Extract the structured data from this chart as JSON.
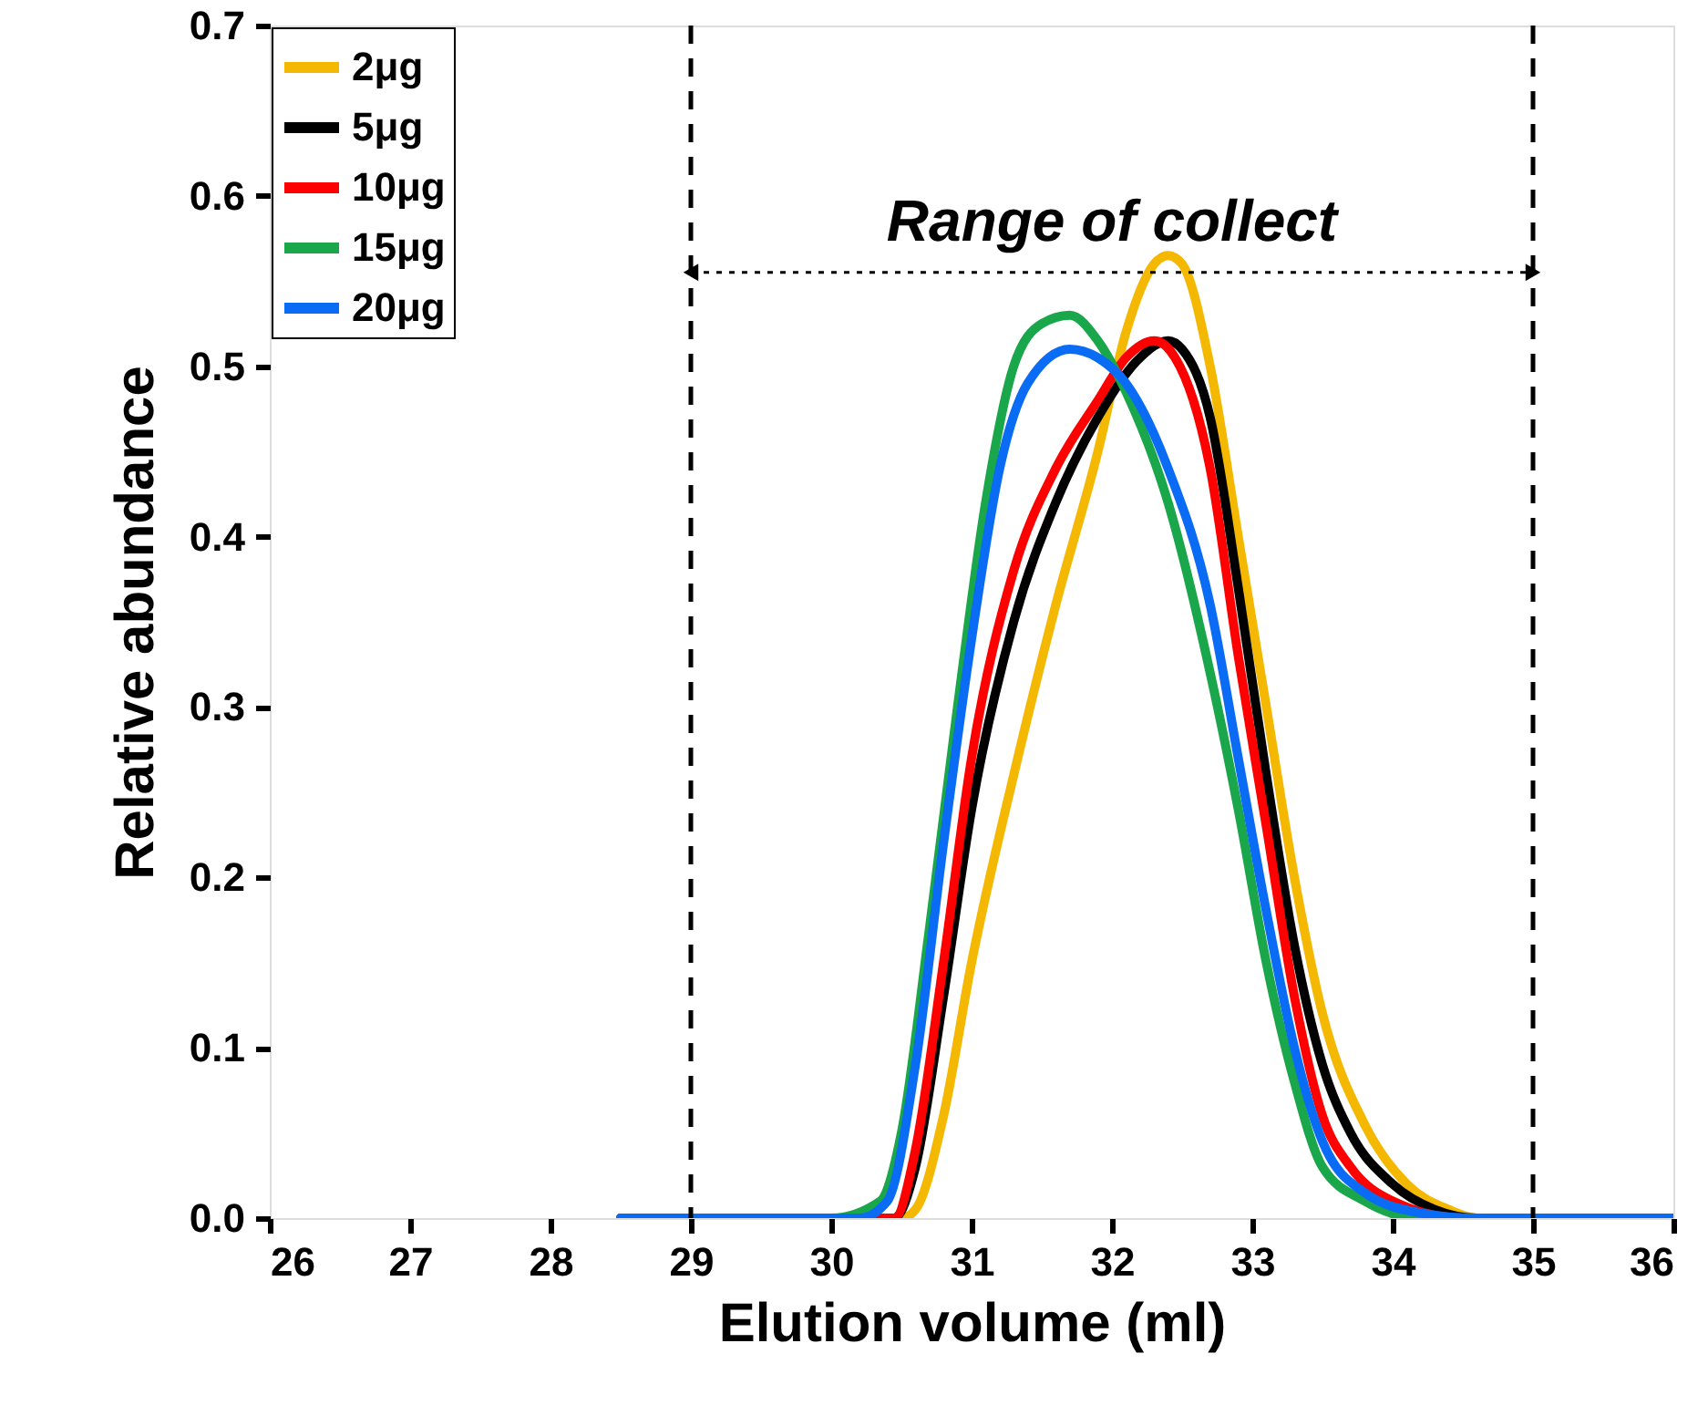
{
  "chart_data": {
    "type": "line",
    "xlabel": "Elution volume (ml)",
    "ylabel": "Relative abundance",
    "xlim": [
      26,
      36
    ],
    "xticks": [
      26,
      27,
      28,
      29,
      30,
      31,
      32,
      33,
      34,
      35,
      36
    ],
    "ylim": [
      0,
      0.7
    ],
    "yticks": [
      {
        "value": 0,
        "label": "0.0"
      },
      0.1,
      0.2,
      0.3,
      0.4,
      0.5,
      0.6,
      0.7
    ],
    "grid": false,
    "legend": "top left",
    "marker": "none",
    "line_style": "solid",
    "ref_lines": [
      {
        "axis": "x",
        "value": 29,
        "line_style": "dashed",
        "color": "#000000"
      },
      {
        "axis": "x",
        "value": 35,
        "line_style": "dashed",
        "color": "#000000"
      }
    ],
    "annotations": [
      "Range of collect"
    ],
    "series": [
      {
        "name": "2μg",
        "color": "#f5b800",
        "x": [
          28.5,
          29.5,
          30.5,
          30.6,
          30.8,
          31.0,
          31.3,
          31.6,
          31.9,
          32.1,
          32.3,
          32.4,
          32.5,
          32.7,
          32.9,
          33.1,
          33.3,
          33.5,
          33.8,
          34.1,
          34.4,
          34.6,
          35,
          36
        ],
        "values": [
          0,
          0,
          0,
          0.005,
          0.06,
          0.15,
          0.26,
          0.36,
          0.45,
          0.52,
          0.56,
          0.565,
          0.56,
          0.5,
          0.4,
          0.3,
          0.2,
          0.12,
          0.055,
          0.02,
          0.005,
          0,
          0,
          0
        ]
      },
      {
        "name": "5μg",
        "color": "#000000",
        "x": [
          28.5,
          29.5,
          30.45,
          30.6,
          30.8,
          31.0,
          31.3,
          31.6,
          31.9,
          32.2,
          32.4,
          32.5,
          32.7,
          32.9,
          33.1,
          33.3,
          33.5,
          33.7,
          34.0,
          34.3,
          34.6,
          36
        ],
        "values": [
          0,
          0,
          0,
          0.03,
          0.13,
          0.24,
          0.35,
          0.42,
          0.47,
          0.505,
          0.515,
          0.51,
          0.47,
          0.37,
          0.26,
          0.16,
          0.09,
          0.05,
          0.02,
          0.005,
          0,
          0
        ]
      },
      {
        "name": "10μg",
        "color": "#ff0000",
        "x": [
          28.5,
          29.5,
          30.45,
          30.6,
          30.8,
          31.0,
          31.3,
          31.6,
          31.9,
          32.1,
          32.3,
          32.45,
          32.7,
          32.9,
          33.1,
          33.3,
          33.5,
          33.7,
          34.0,
          34.5,
          36
        ],
        "values": [
          0,
          0,
          0,
          0.04,
          0.15,
          0.27,
          0.38,
          0.44,
          0.48,
          0.505,
          0.515,
          0.505,
          0.44,
          0.33,
          0.23,
          0.13,
          0.06,
          0.03,
          0.01,
          0,
          0
        ]
      },
      {
        "name": "15μg",
        "color": "#1aa64a",
        "x": [
          28.5,
          29.5,
          30.0,
          30.35,
          30.5,
          30.7,
          30.9,
          31.1,
          31.3,
          31.5,
          31.7,
          31.9,
          32.1,
          32.4,
          32.7,
          32.9,
          33.1,
          33.3,
          33.5,
          33.8,
          34.2,
          36
        ],
        "values": [
          0,
          0,
          0,
          0.01,
          0.05,
          0.17,
          0.3,
          0.42,
          0.5,
          0.525,
          0.53,
          0.515,
          0.485,
          0.42,
          0.32,
          0.24,
          0.15,
          0.08,
          0.03,
          0.01,
          0,
          0
        ]
      },
      {
        "name": "20μg",
        "color": "#0a6cf5",
        "x": [
          28.5,
          29.5,
          30.2,
          30.4,
          30.6,
          30.8,
          31.0,
          31.2,
          31.4,
          31.7,
          31.9,
          32.1,
          32.4,
          32.7,
          32.9,
          33.1,
          33.3,
          33.5,
          33.8,
          34.2,
          34.6,
          36
        ],
        "values": [
          0,
          0,
          0,
          0.01,
          0.09,
          0.22,
          0.34,
          0.44,
          0.49,
          0.51,
          0.505,
          0.49,
          0.44,
          0.36,
          0.27,
          0.18,
          0.1,
          0.045,
          0.015,
          0.003,
          0,
          0
        ]
      }
    ]
  }
}
